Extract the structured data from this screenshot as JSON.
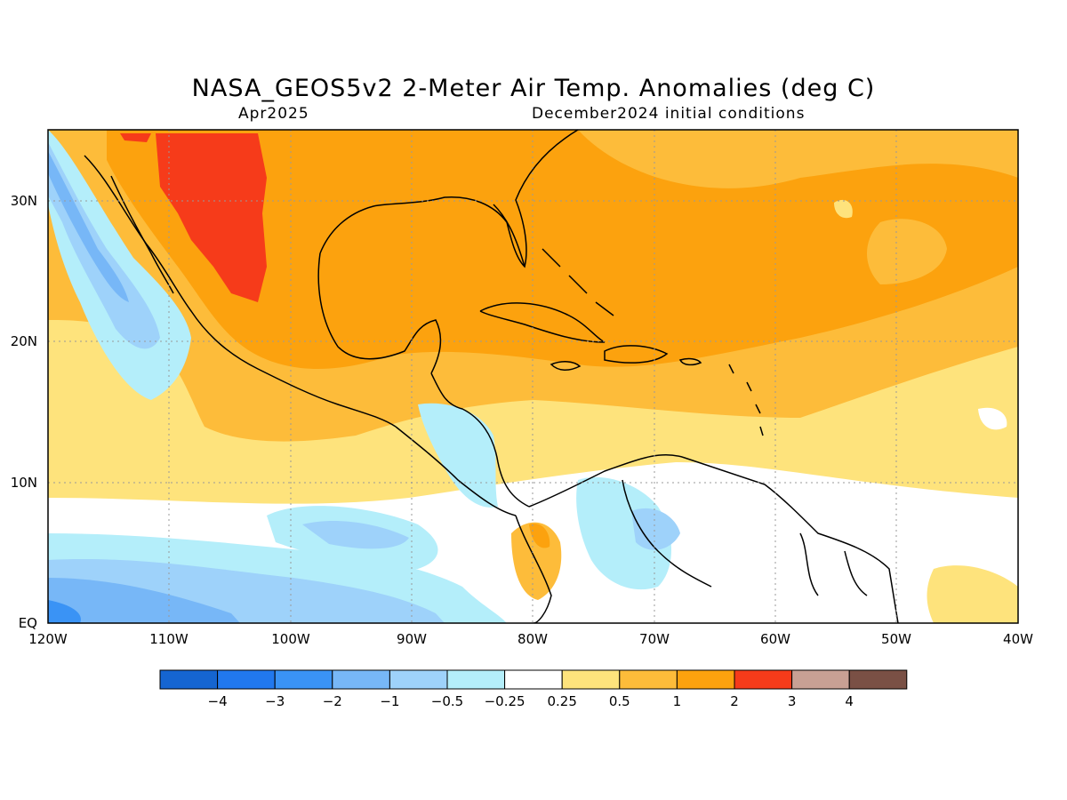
{
  "title": "NASA_GEOS5v2 2-Meter Air Temp. Anomalies (deg C)",
  "subtitle_left": "Apr2025",
  "subtitle_right": "December2024 initial conditions",
  "map": {
    "lon_labels": [
      "120W",
      "110W",
      "100W",
      "90W",
      "80W",
      "70W",
      "60W",
      "50W",
      "40W"
    ],
    "lat_labels": [
      "30N",
      "20N",
      "10N",
      "EQ"
    ]
  },
  "colorbar": {
    "colors": [
      "#1565d1",
      "#2178ee",
      "#3a93f5",
      "#77b7f7",
      "#9ed2fa",
      "#b4eefa",
      "#ffffff",
      "#fee37c",
      "#fdbc3a",
      "#fca20e",
      "#f63b1a",
      "#c8a094",
      "#7a5045"
    ],
    "labels": [
      "−4",
      "−3",
      "−2",
      "−1",
      "−0.5",
      "−0.25",
      "0.25",
      "0.5",
      "1",
      "2",
      "3",
      "4"
    ]
  }
}
